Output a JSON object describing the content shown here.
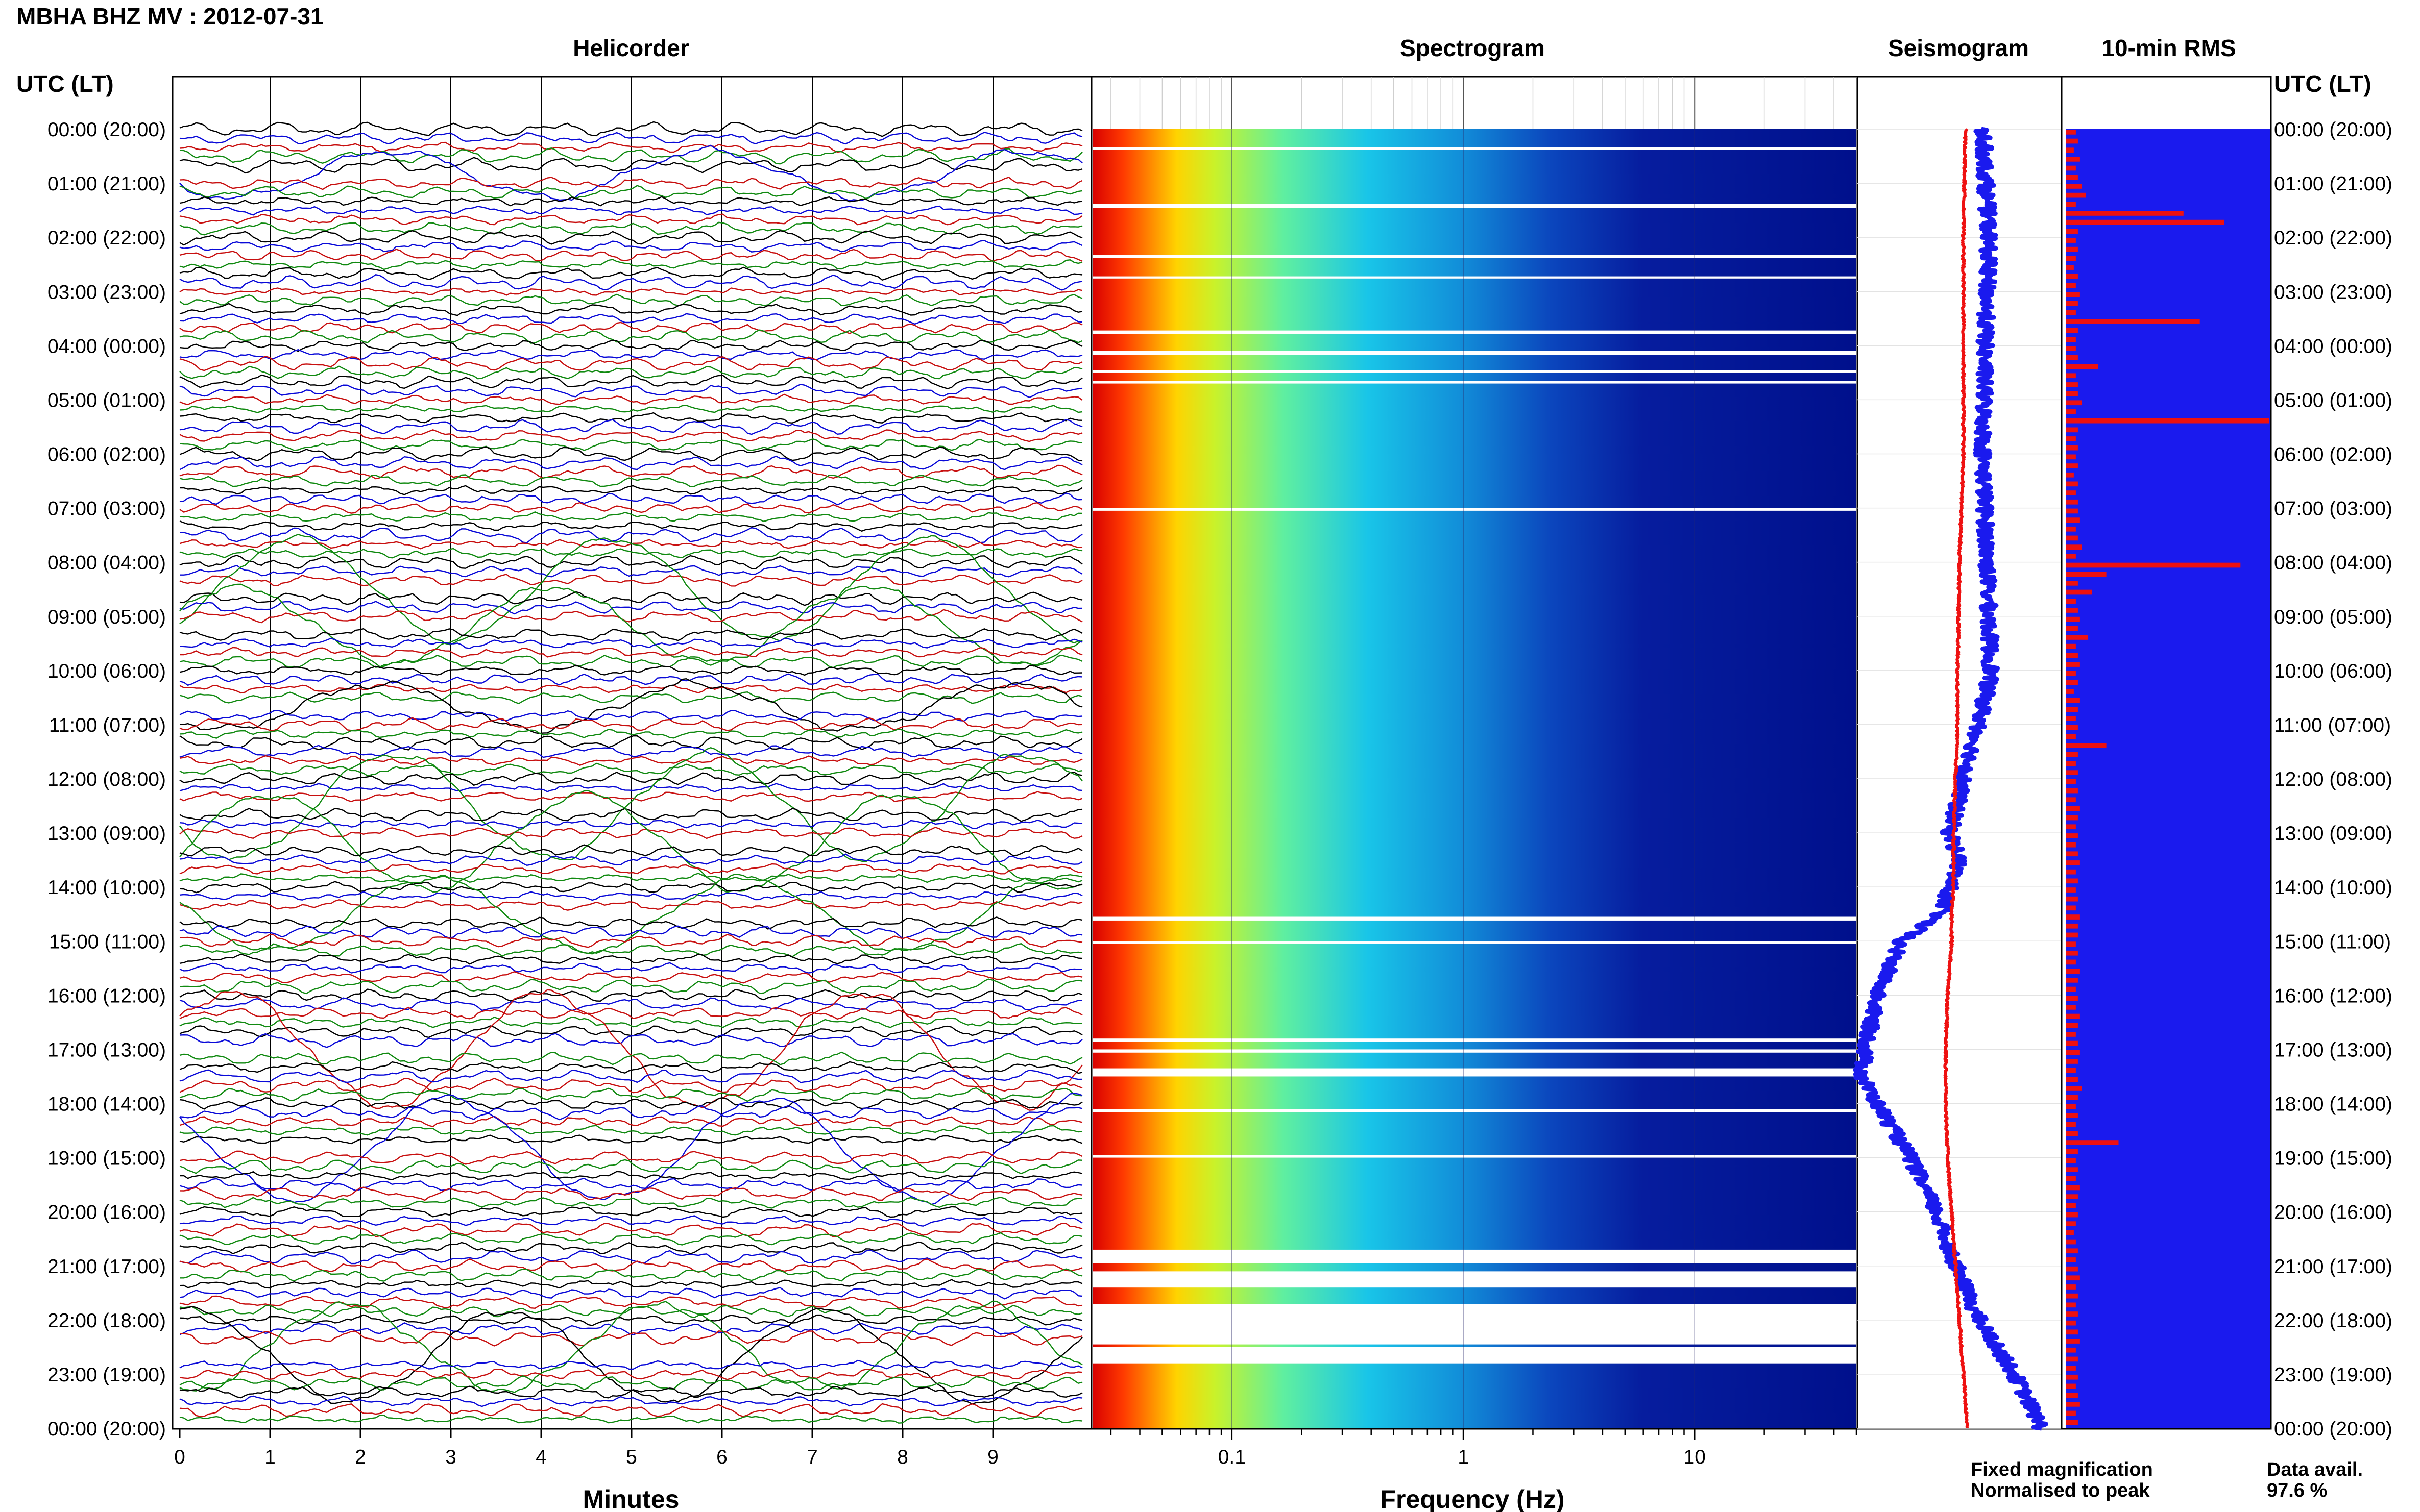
{
  "title": "MBHA BHZ MV : 2012-07-31",
  "left_axis_label": "UTC (LT)",
  "right_axis_label": "UTC (LT)",
  "panels": {
    "helicorder": "Helicorder",
    "spectrogram": "Spectrogram",
    "seismogram": "Seismogram",
    "rms": "10-min RMS"
  },
  "x_labels": {
    "minutes": "Minutes",
    "frequency": "Frequency (Hz)"
  },
  "legend": {
    "fixed": "Fixed magnification",
    "fixed_color": "#1010e0",
    "normalised": "Normalised to peak",
    "normalised_color": "#ee1111"
  },
  "data_avail": {
    "label": "Data avail.",
    "value": "97.6 %"
  },
  "colors": {
    "trace_cycle": [
      "#000000",
      "#0a0ad8",
      "#c81010",
      "#118a11"
    ],
    "rms_background": "#1a1aee",
    "rms_bar": "#ee1010",
    "seismogram_fixed": "#1a1aee",
    "seismogram_normalised": "#ee1111"
  },
  "chart_data": [
    {
      "type": "line",
      "name": "helicorder",
      "xlabel": "Minutes",
      "xlim": [
        0,
        10
      ],
      "x_ticks": [
        "0",
        "1",
        "2",
        "3",
        "4",
        "5",
        "6",
        "7",
        "8",
        "9"
      ],
      "y_ticks": [
        "00:00 (20:00)",
        "01:00 (21:00)",
        "02:00 (22:00)",
        "03:00 (23:00)",
        "04:00 (00:00)",
        "05:00 (01:00)",
        "06:00 (02:00)",
        "07:00 (03:00)",
        "08:00 (04:00)",
        "09:00 (05:00)",
        "10:00 (06:00)",
        "11:00 (07:00)",
        "12:00 (08:00)",
        "13:00 (09:00)",
        "14:00 (10:00)",
        "15:00 (11:00)",
        "16:00 (12:00)",
        "17:00 (13:00)",
        "18:00 (14:00)",
        "19:00 (15:00)",
        "20:00 (16:00)",
        "21:00 (17:00)",
        "22:00 (18:00)",
        "23:00 (19:00)",
        "00:00 (20:00)"
      ],
      "traces": 144,
      "trace_minutes": 10
    },
    {
      "type": "heatmap",
      "name": "spectrogram",
      "xlabel": "Frequency (Hz)",
      "x_scale": "log",
      "xlim": [
        0.025,
        50
      ],
      "x_ticks": [
        "0.1",
        "1",
        "10"
      ],
      "x_tick_values": [
        0.1,
        1,
        10
      ],
      "gap_rows_hours": [
        [
          0.33,
          0.38
        ],
        [
          1.38,
          1.46
        ],
        [
          2.32,
          2.38
        ],
        [
          2.72,
          2.76
        ],
        [
          3.72,
          3.78
        ],
        [
          4.1,
          4.17
        ],
        [
          4.45,
          4.5
        ],
        [
          4.65,
          4.7
        ],
        [
          7.0,
          7.05
        ],
        [
          14.55,
          14.62
        ],
        [
          15.0,
          15.05
        ],
        [
          16.8,
          16.86
        ],
        [
          17.0,
          17.06
        ],
        [
          17.35,
          17.5
        ],
        [
          18.1,
          18.16
        ],
        [
          18.95,
          19.0
        ],
        [
          20.7,
          20.95
        ],
        [
          21.1,
          21.4
        ],
        [
          21.7,
          22.45
        ],
        [
          22.5,
          22.8
        ]
      ]
    },
    {
      "type": "line",
      "name": "seismogram",
      "series": [
        {
          "name": "Fixed magnification",
          "color": "#1a1aee"
        },
        {
          "name": "Normalised to peak",
          "color": "#ee1111"
        }
      ],
      "hours": [
        0,
        2,
        4,
        6,
        8,
        10,
        11,
        12,
        13,
        13.5,
        14,
        14.5,
        15,
        16,
        17,
        17.5,
        18,
        19,
        20,
        21,
        22,
        23,
        24
      ],
      "fixed_offset": [
        0.62,
        0.65,
        0.63,
        0.62,
        0.64,
        0.66,
        0.6,
        0.52,
        0.45,
        0.5,
        0.45,
        0.4,
        0.2,
        0.08,
        0.02,
        0.0,
        0.08,
        0.25,
        0.38,
        0.48,
        0.6,
        0.78,
        0.92
      ],
      "normalised_offset": [
        0.53,
        0.52,
        0.52,
        0.52,
        0.5,
        0.49,
        0.49,
        0.48,
        0.47,
        0.47,
        0.47,
        0.46,
        0.46,
        0.44,
        0.43,
        0.43,
        0.43,
        0.44,
        0.46,
        0.48,
        0.5,
        0.52,
        0.54
      ]
    },
    {
      "type": "bar",
      "name": "10-min RMS",
      "orientation": "horizontal",
      "bars_per_hour": 6,
      "rms_relative": [
        0.05,
        0.06,
        0.04,
        0.07,
        0.05,
        0.06,
        0.08,
        0.1,
        0.05,
        0.58,
        0.78,
        0.06,
        0.05,
        0.06,
        0.05,
        0.04,
        0.06,
        0.05,
        0.07,
        0.06,
        0.05,
        0.66,
        0.06,
        0.05,
        0.05,
        0.06,
        0.16,
        0.05,
        0.06,
        0.06,
        0.08,
        0.05,
        1.0,
        0.06,
        0.05,
        0.06,
        0.05,
        0.06,
        0.04,
        0.06,
        0.05,
        0.06,
        0.06,
        0.07,
        0.05,
        0.06,
        0.08,
        0.05,
        0.86,
        0.2,
        0.06,
        0.13,
        0.05,
        0.06,
        0.07,
        0.06,
        0.11,
        0.05,
        0.06,
        0.07,
        0.05,
        0.06,
        0.04,
        0.07,
        0.06,
        0.05,
        0.06,
        0.05,
        0.2,
        0.06,
        0.05,
        0.06,
        0.05,
        0.06,
        0.05,
        0.07,
        0.06,
        0.05,
        0.06,
        0.05,
        0.06,
        0.07,
        0.05,
        0.06,
        0.05,
        0.06,
        0.05,
        0.07,
        0.06,
        0.06,
        0.05,
        0.06,
        0.05,
        0.07,
        0.06,
        0.05,
        0.06,
        0.05,
        0.07,
        0.06,
        0.05,
        0.06,
        0.07,
        0.06,
        0.05,
        0.06,
        0.08,
        0.06,
        0.05,
        0.06,
        0.05,
        0.06,
        0.26,
        0.06,
        0.05,
        0.06,
        0.05,
        0.07,
        0.06,
        0.05,
        0.06,
        0.05,
        0.04,
        0.05,
        0.06,
        0.05,
        0.06,
        0.07,
        0.05,
        0.06,
        0.05,
        0.06,
        0.05,
        0.06,
        0.07,
        0.05,
        0.06,
        0.05,
        0.06,
        0.05,
        0.06,
        0.07,
        0.05,
        0.06
      ]
    }
  ]
}
